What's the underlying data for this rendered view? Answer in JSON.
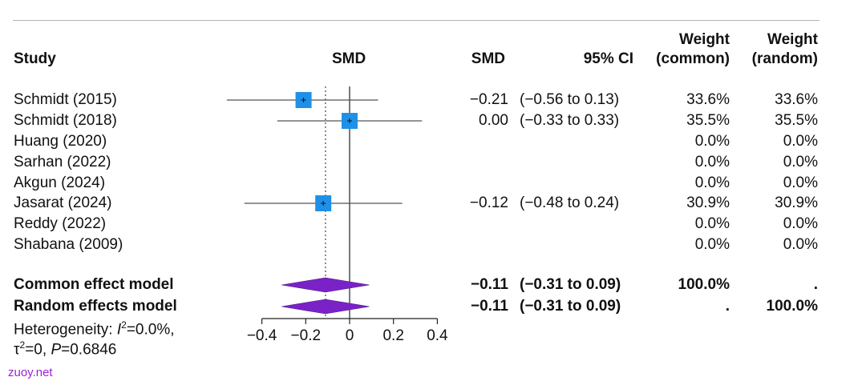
{
  "header": {
    "study": "Study",
    "smd_plot": "SMD",
    "smd_col": "SMD",
    "ci_col": "95% CI",
    "weight_common_line1": "Weight",
    "weight_common_line2": "(common)",
    "weight_random_line1": "Weight",
    "weight_random_line2": "(random)"
  },
  "summary": {
    "common_label": "Common effect model",
    "random_label": "Random effects model",
    "common_smd": "−0.11",
    "common_ci": "(−0.31 to 0.09)",
    "common_weight_common": "100.0%",
    "common_weight_random": ".",
    "random_smd": "−0.11",
    "random_ci": "(−0.31 to 0.09)",
    "random_weight_common": ".",
    "random_weight_random": "100.0%"
  },
  "heterogeneity": {
    "line1_prefix": "Heterogeneity: ",
    "i_symbol": "I",
    "i_sup": "2",
    "line1_suffix": "=0.0%,",
    "tau_symbol": "τ",
    "tau_sup": "2",
    "tau_value": "=0, ",
    "p_symbol": "P",
    "p_value": "=0.6846"
  },
  "watermark": "zuoy.net",
  "colors": {
    "square": "#1e90e8",
    "diamond": "#7a22c8",
    "line": "#555555",
    "text": "#111111"
  },
  "chart_data": {
    "type": "forest",
    "xlabel": "",
    "xlim": [
      -0.5,
      0.4
    ],
    "ticks": [
      -0.4,
      -0.2,
      0,
      0.2,
      0.4
    ],
    "tick_labels": [
      "−0.4",
      "−0.2",
      "0",
      "0.2",
      "0.4"
    ],
    "reference_line": 0,
    "pooled_line": -0.11,
    "studies": [
      {
        "name": "Schmidt (2015)",
        "smd": -0.21,
        "lower": -0.56,
        "upper": 0.13,
        "smd_text": "−0.21",
        "ci_text": "(−0.56 to 0.13)",
        "w_common": "33.6%",
        "w_random": "33.6%",
        "weight": 33.6
      },
      {
        "name": "Schmidt (2018)",
        "smd": 0.0,
        "lower": -0.33,
        "upper": 0.33,
        "smd_text": "0.00",
        "ci_text": "(−0.33 to 0.33)",
        "w_common": "35.5%",
        "w_random": "35.5%",
        "weight": 35.5
      },
      {
        "name": "Huang (2020)",
        "smd": null,
        "lower": null,
        "upper": null,
        "smd_text": "",
        "ci_text": "",
        "w_common": "0.0%",
        "w_random": "0.0%",
        "weight": 0
      },
      {
        "name": "Sarhan (2022)",
        "smd": null,
        "lower": null,
        "upper": null,
        "smd_text": "",
        "ci_text": "",
        "w_common": "0.0%",
        "w_random": "0.0%",
        "weight": 0
      },
      {
        "name": "Akgun (2024)",
        "smd": null,
        "lower": null,
        "upper": null,
        "smd_text": "",
        "ci_text": "",
        "w_common": "0.0%",
        "w_random": "0.0%",
        "weight": 0
      },
      {
        "name": "Jasarat (2024)",
        "smd": -0.12,
        "lower": -0.48,
        "upper": 0.24,
        "smd_text": "−0.12",
        "ci_text": "(−0.48 to 0.24)",
        "w_common": "30.9%",
        "w_random": "30.9%",
        "weight": 30.9
      },
      {
        "name": "Reddy (2022)",
        "smd": null,
        "lower": null,
        "upper": null,
        "smd_text": "",
        "ci_text": "",
        "w_common": "0.0%",
        "w_random": "0.0%",
        "weight": 0
      },
      {
        "name": "Shabana (2009)",
        "smd": null,
        "lower": null,
        "upper": null,
        "smd_text": "",
        "ci_text": "",
        "w_common": "0.0%",
        "w_random": "0.0%",
        "weight": 0
      }
    ],
    "pooled": [
      {
        "name": "Common effect model",
        "smd": -0.11,
        "lower": -0.31,
        "upper": 0.09
      },
      {
        "name": "Random effects model",
        "smd": -0.11,
        "lower": -0.31,
        "upper": 0.09
      }
    ]
  }
}
